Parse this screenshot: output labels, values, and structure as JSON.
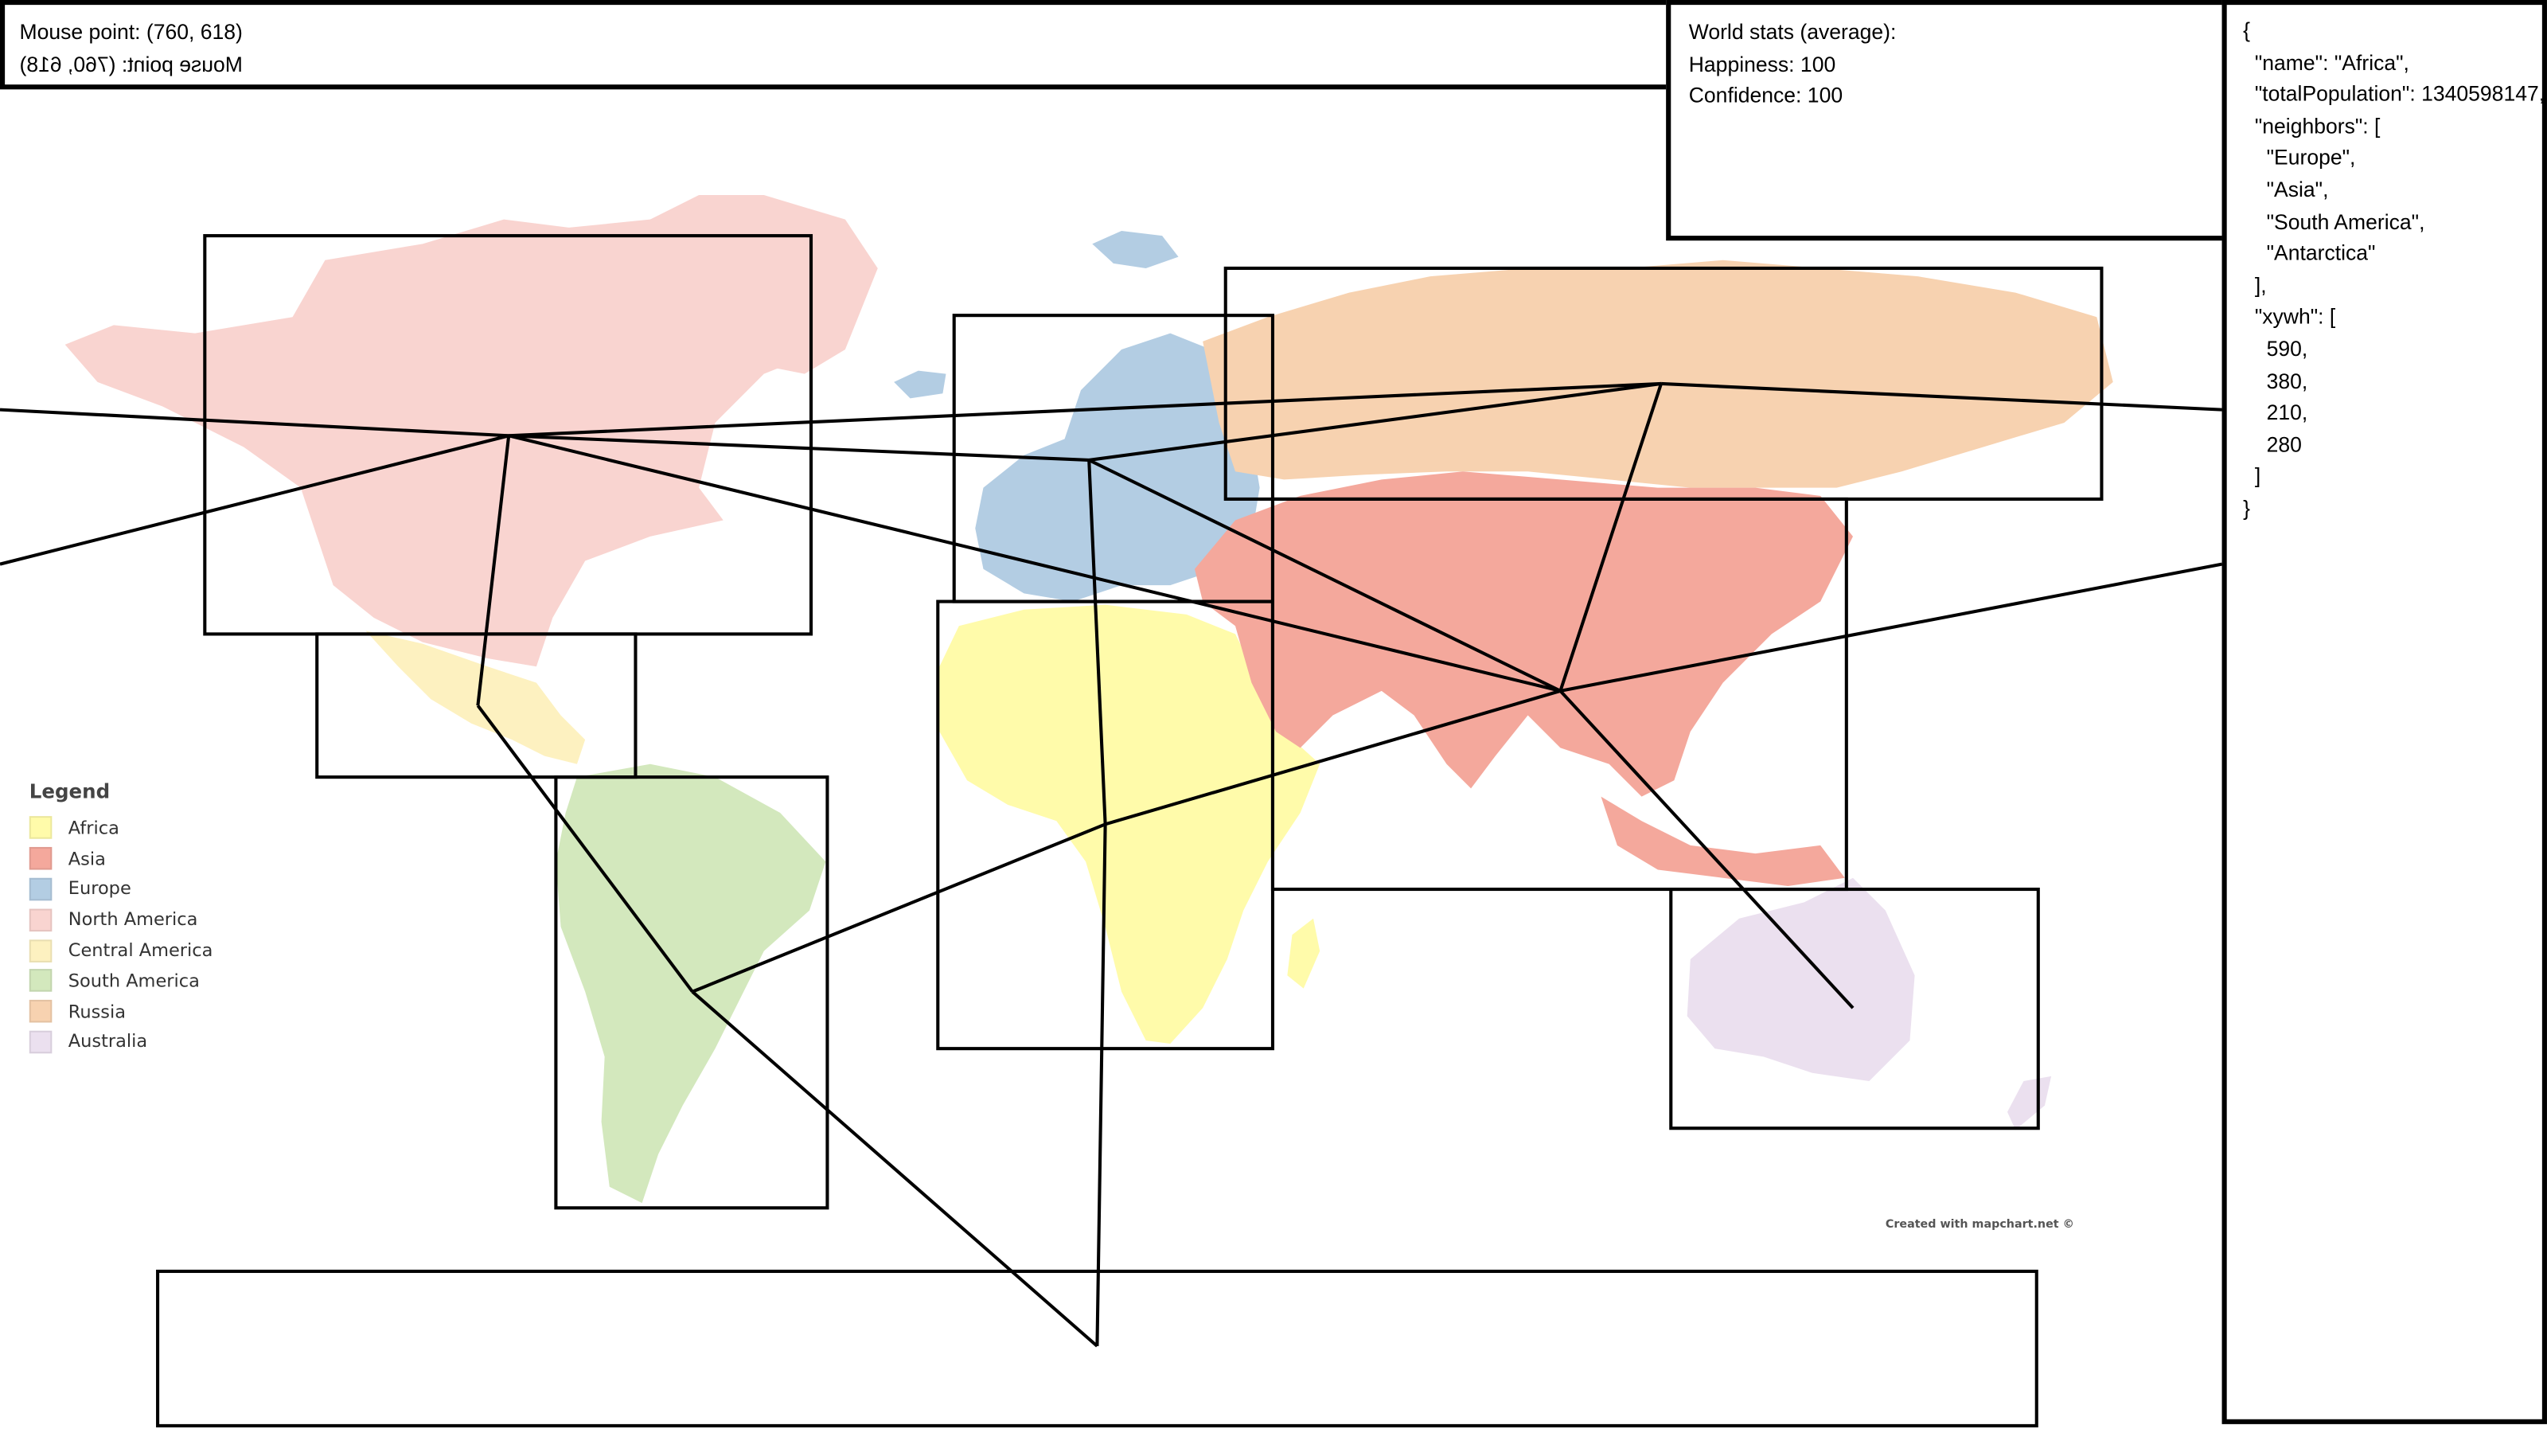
{
  "mouse": {
    "line1": "Mouse point: (760, 618)",
    "line2": "Mouse point: (760, 618)"
  },
  "stats": {
    "title": "World stats (average):",
    "happiness": "Happiness: 100",
    "confidence": "Confidence: 100"
  },
  "selection_json": "{\n  \"name\": \"Africa\",\n  \"totalPopulation\": 1340598147,\n  \"neighbors\": [\n    \"Europe\",\n    \"Asia\",\n    \"South America\",\n    \"Antarctica\"\n  ],\n  \"xywh\": [\n    590,\n    380,\n    210,\n    280\n  ]\n}",
  "legend": {
    "title": "Legend",
    "items": [
      {
        "label": "Africa",
        "color": "#fffbaa"
      },
      {
        "label": "Asia",
        "color": "#f4a89c"
      },
      {
        "label": "Europe",
        "color": "#b3cde3"
      },
      {
        "label": "North America",
        "color": "#f9d4d0"
      },
      {
        "label": "Central America",
        "color": "#fdf1c0"
      },
      {
        "label": "South America",
        "color": "#d3e8bd"
      },
      {
        "label": "Russia",
        "color": "#f7d2b0"
      },
      {
        "label": "Australia",
        "color": "#ebe0ef"
      }
    ]
  },
  "credit": "Created with mapchart.net ©"
}
